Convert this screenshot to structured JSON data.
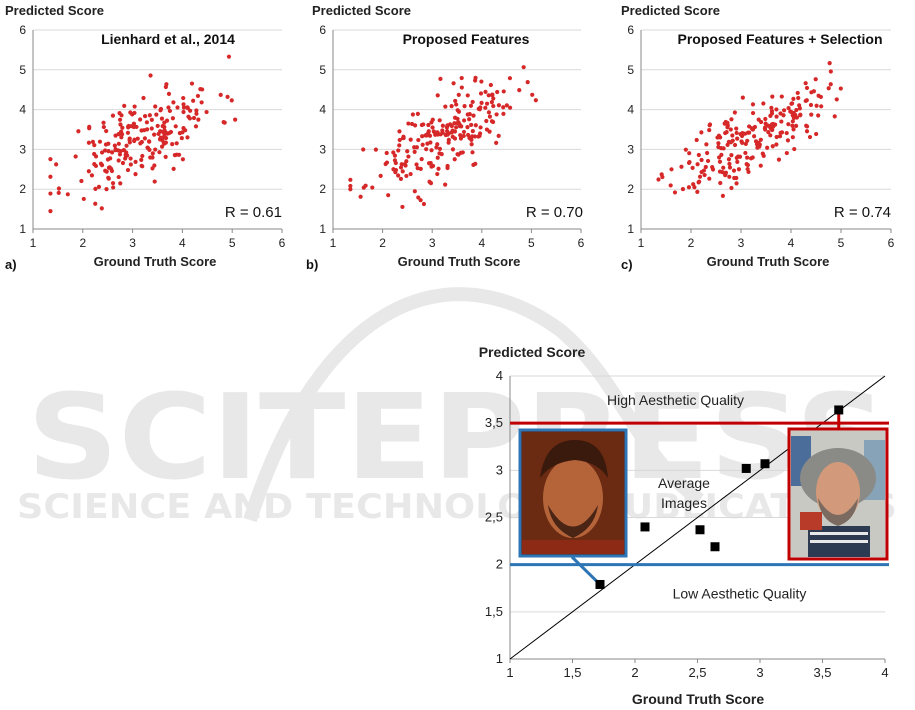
{
  "watermark": {
    "main": "SCITEPRESS",
    "sub": "SCIENCE AND TECHNOLOGY PUBLICATIONS"
  },
  "chart_data": [
    {
      "type": "scatter",
      "panel_label": "a)",
      "title": "Lienhard et al., 2014",
      "xlabel": "Ground Truth Score",
      "ylabel": "Predicted Score",
      "xlim": [
        1,
        6
      ],
      "ylim": [
        1,
        6
      ],
      "xticks": [
        "1",
        "2",
        "3",
        "4",
        "5",
        "6"
      ],
      "yticks": [
        "1",
        "2",
        "3",
        "4",
        "5",
        "6"
      ],
      "grid": "horizontal",
      "annotation": "R = 0.61",
      "point_color": "#d62828",
      "r": 0.61,
      "n_points": 220,
      "seed": 11
    },
    {
      "type": "scatter",
      "panel_label": "b)",
      "title": "Proposed Features",
      "xlabel": "Ground Truth Score",
      "ylabel": "Predicted Score",
      "xlim": [
        1,
        6
      ],
      "ylim": [
        1,
        6
      ],
      "xticks": [
        "1",
        "2",
        "3",
        "4",
        "5",
        "6"
      ],
      "yticks": [
        "1",
        "2",
        "3",
        "4",
        "5",
        "6"
      ],
      "grid": "horizontal",
      "annotation": "R = 0.70",
      "point_color": "#d62828",
      "r": 0.7,
      "n_points": 220,
      "seed": 23
    },
    {
      "type": "scatter",
      "panel_label": "c)",
      "title": "Proposed Features + Selection",
      "xlabel": "Ground Truth Score",
      "ylabel": "Predicted Score",
      "xlim": [
        1,
        6
      ],
      "ylim": [
        1,
        6
      ],
      "xticks": [
        "1",
        "2",
        "3",
        "4",
        "5",
        "6"
      ],
      "yticks": [
        "1",
        "2",
        "3",
        "4",
        "5",
        "6"
      ],
      "grid": "horizontal",
      "annotation": "R = 0.74",
      "point_color": "#d62828",
      "r": 0.74,
      "n_points": 220,
      "seed": 37
    },
    {
      "type": "scatter",
      "title": "",
      "xlabel": "Ground Truth Score",
      "ylabel": "Predicted Score",
      "xlim": [
        1,
        4
      ],
      "ylim": [
        1,
        4
      ],
      "xticks": [
        "1",
        "1,5",
        "2",
        "2,5",
        "3",
        "3,5",
        "4"
      ],
      "yticks": [
        "1",
        "1,5",
        "2",
        "2,5",
        "3",
        "3,5",
        "4"
      ],
      "grid": "horizontal",
      "diagonal": [
        [
          1,
          1
        ],
        [
          4,
          4
        ]
      ],
      "points": [
        {
          "x": 1.72,
          "y": 1.79
        },
        {
          "x": 2.08,
          "y": 2.4
        },
        {
          "x": 2.52,
          "y": 2.37
        },
        {
          "x": 2.64,
          "y": 2.19
        },
        {
          "x": 2.89,
          "y": 3.02
        },
        {
          "x": 3.04,
          "y": 3.07
        },
        {
          "x": 3.63,
          "y": 3.64
        }
      ],
      "thresholds": [
        {
          "label": "High Aesthetic Quality",
          "y": 3.5,
          "color": "#c00000"
        },
        {
          "label": "Low Aesthetic Quality",
          "y": 2.0,
          "color": "#2e75b6"
        }
      ],
      "annotation": "Average Images",
      "annotation_lines": [
        "Average",
        "Images"
      ],
      "marker_color": "#000000",
      "images": [
        {
          "name": "low-aesthetic-face",
          "frame_color": "#2e75b6",
          "anchor": {
            "x": 1.72,
            "y": 1.79
          }
        },
        {
          "name": "high-aesthetic-face",
          "frame_color": "#c00000",
          "anchor": {
            "x": 3.63,
            "y": 3.64
          }
        }
      ]
    }
  ]
}
